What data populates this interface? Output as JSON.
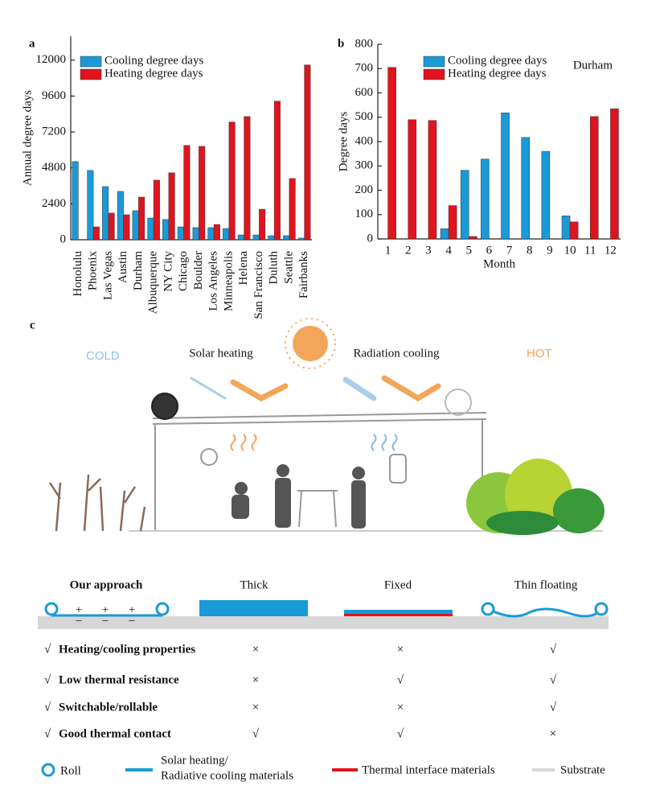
{
  "chart_data": [
    {
      "type": "bar",
      "panel": "a",
      "ylabel": "Annual degree days",
      "categories": [
        "Honolulu",
        "Phoenix",
        "Las Vegas",
        "Austin",
        "Durham",
        "Albuquerque",
        "NY City",
        "Chicago",
        "Boulder",
        "Los Angeles",
        "Minneapolis",
        "Helena",
        "San Francisco",
        "Duluth",
        "Seattle",
        "Fairbanks"
      ],
      "series": [
        {
          "name": "Cooling degree days",
          "color": "#1a9ad6",
          "values": [
            5220,
            4630,
            3550,
            3230,
            1940,
            1450,
            1350,
            860,
            810,
            810,
            750,
            320,
            320,
            270,
            270,
            110
          ]
        },
        {
          "name": "Heating degree days",
          "color": "#e0141e",
          "values": [
            0,
            860,
            1780,
            1670,
            2850,
            3980,
            4470,
            6300,
            6240,
            1020,
            7860,
            8230,
            2040,
            9260,
            4090,
            11680
          ]
        }
      ],
      "ylim": [
        0,
        13600
      ],
      "yticks": [
        0,
        2400,
        4800,
        7200,
        9600,
        12000
      ],
      "legend": "upper left"
    },
    {
      "type": "bar",
      "panel": "b",
      "ylabel": "Degree days",
      "xlabel": "Month",
      "annotation": "Durham",
      "categories": [
        "1",
        "2",
        "3",
        "4",
        "5",
        "6",
        "7",
        "8",
        "9",
        "10",
        "11",
        "12"
      ],
      "series": [
        {
          "name": "Cooling degree days",
          "color": "#1a9ad6",
          "values": [
            0,
            0,
            0,
            42,
            282,
            328,
            518,
            417,
            360,
            95,
            0,
            0
          ]
        },
        {
          "name": "Heating degree days",
          "color": "#e0141e",
          "values": [
            705,
            490,
            487,
            137,
            10,
            0,
            0,
            0,
            0,
            70,
            503,
            535
          ]
        }
      ],
      "ylim": [
        0,
        800
      ],
      "yticks": [
        0,
        100,
        200,
        300,
        400,
        500,
        600,
        700,
        800
      ],
      "legend": "upper left"
    }
  ],
  "panel_c": {
    "label": "c",
    "cold": "COLD",
    "hot": "HOT",
    "solar_heating": "Solar heating",
    "radiation_cooling": "Radiation cooling",
    "table": {
      "columns": [
        "Our approach",
        "Thick",
        "Fixed",
        "Thin floating"
      ],
      "rows": [
        {
          "check": "√",
          "label": "Heating/cooling properties",
          "cells": [
            "×",
            "×",
            "√"
          ]
        },
        {
          "check": "√",
          "label": "Low thermal resistance",
          "cells": [
            "×",
            "√",
            "√"
          ]
        },
        {
          "check": "√",
          "label": "Switchable/rollable",
          "cells": [
            "×",
            "×",
            "√"
          ]
        },
        {
          "check": "√",
          "label": "Good thermal contact",
          "cells": [
            "√",
            "√",
            "×"
          ]
        }
      ],
      "signs": {
        "plus": "+",
        "minus": "−"
      }
    },
    "legend": {
      "roll": "Roll",
      "materials": [
        "Solar heating/",
        "Radiative cooling materials"
      ],
      "interface": "Thermal interface materials",
      "substrate": "Substrate"
    }
  }
}
